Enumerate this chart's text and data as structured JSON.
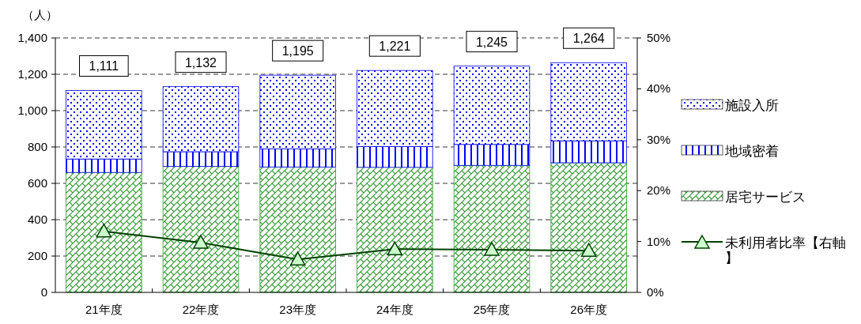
{
  "chart_data": {
    "type": "bar",
    "stacked": true,
    "ylabel": "（人）",
    "categories": [
      "21年度",
      "22年度",
      "23年度",
      "24年度",
      "25年度",
      "26年度"
    ],
    "series": [
      {
        "name": "居宅サービス",
        "color": "#339933",
        "values": [
          660,
          693,
          690,
          688,
          699,
          713
        ]
      },
      {
        "name": "地域密着",
        "color": "#0000ff",
        "values": [
          74,
          81,
          100,
          114,
          115,
          121
        ]
      },
      {
        "name": "施設入所",
        "color": "#0000ff",
        "values": [
          377,
          358,
          405,
          419,
          431,
          430
        ]
      },
      {
        "name": "未利用者比率【右軸】",
        "type": "line",
        "axis": "y2",
        "color": "#004000",
        "marker": "triangle",
        "values": [
          12.0,
          9.8,
          6.5,
          8.5,
          8.4,
          8.2
        ]
      }
    ],
    "totals": [
      "1,111",
      "1,132",
      "1,195",
      "1,221",
      "1,245",
      "1,264"
    ],
    "ylim": [
      0,
      1400
    ],
    "yticks": [
      0,
      200,
      400,
      600,
      800,
      {
        "value": 1000,
        "label": "1,000"
      },
      {
        "value": 1200,
        "label": "1,200"
      },
      {
        "value": 1400,
        "label": "1,400"
      }
    ],
    "y2lim": [
      0,
      50
    ],
    "y2ticks": [
      {
        "value": 0,
        "label": "0%"
      },
      {
        "value": 10,
        "label": "10%"
      },
      {
        "value": 20,
        "label": "20%"
      },
      {
        "value": 30,
        "label": "30%"
      },
      {
        "value": 40,
        "label": "40%"
      },
      {
        "value": 50,
        "label": "50%"
      }
    ],
    "grid": "y",
    "legend": "right"
  }
}
